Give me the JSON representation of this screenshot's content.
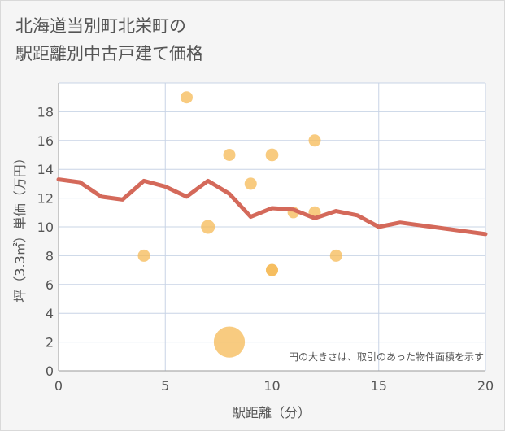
{
  "title_lines": [
    "北海道当別町北栄町の",
    "駅距離別中古戸建て価格"
  ],
  "chart_data": {
    "type": "scatter",
    "xlabel": "駅距離（分）",
    "ylabel": "坪（3.3㎡）単価（万円）",
    "xlim": [
      0,
      20
    ],
    "ylim": [
      0,
      20
    ],
    "x_ticks": [
      0,
      5,
      10,
      15,
      20
    ],
    "y_ticks": [
      0,
      2,
      4,
      6,
      8,
      10,
      12,
      14,
      16,
      18
    ],
    "grid": true,
    "note": "円の大きさは、取引のあった物件面積を示す",
    "colors": {
      "bubble": "#f5b955",
      "line": "#d4695a",
      "grid": "#c8d4e6",
      "background": "#ffffff",
      "axis_text": "#555555"
    },
    "bubbles": [
      {
        "x": 4,
        "y": 8,
        "size": 1
      },
      {
        "x": 6,
        "y": 19,
        "size": 1
      },
      {
        "x": 7,
        "y": 10,
        "size": 1.3
      },
      {
        "x": 8,
        "y": 15,
        "size": 1
      },
      {
        "x": 8,
        "y": 2,
        "size": 6.5
      },
      {
        "x": 9,
        "y": 13,
        "size": 1
      },
      {
        "x": 10,
        "y": 15,
        "size": 1.1
      },
      {
        "x": 10,
        "y": 7,
        "size": 1
      },
      {
        "x": 10,
        "y": 7,
        "size": 1
      },
      {
        "x": 11,
        "y": 11,
        "size": 0.9
      },
      {
        "x": 12,
        "y": 16,
        "size": 1
      },
      {
        "x": 12,
        "y": 11,
        "size": 1
      },
      {
        "x": 13,
        "y": 8,
        "size": 1
      }
    ],
    "trend": {
      "x": [
        0,
        1,
        2,
        3,
        4,
        5,
        6,
        7,
        8,
        9,
        10,
        11,
        12,
        13,
        14,
        15,
        16,
        17,
        18,
        19,
        20
      ],
      "y": [
        13.3,
        13.1,
        12.1,
        11.9,
        13.2,
        12.8,
        12.1,
        13.2,
        12.3,
        10.7,
        11.3,
        11.2,
        10.6,
        11.1,
        10.8,
        10.0,
        10.3,
        10.1,
        9.9,
        9.7,
        9.5
      ]
    }
  }
}
